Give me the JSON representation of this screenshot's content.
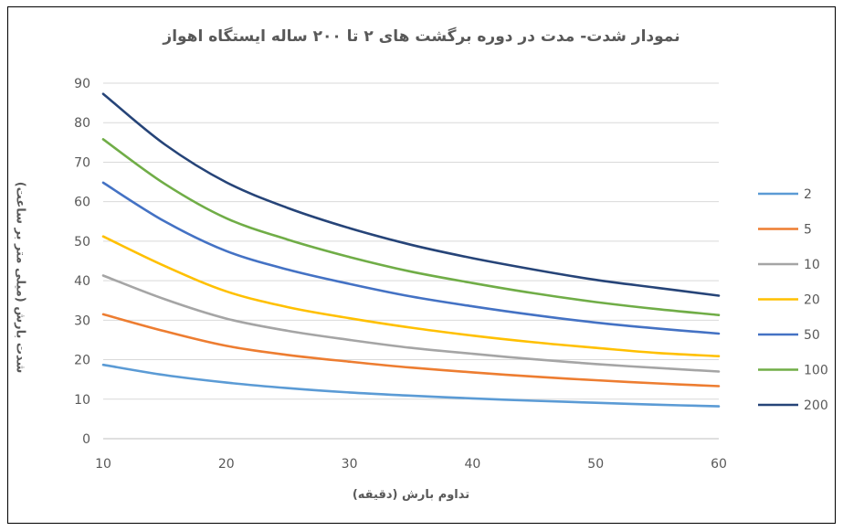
{
  "chart_data": {
    "type": "line",
    "title": "نمودار شدت- مدت در دوره برگشت های ۲ تا ۲۰۰ ساله ایستگاه اهواز",
    "xlabel": "تداوم بارش (دقیقه)",
    "ylabel": "شدت بارش (میلی متر بر ساعت)",
    "xlim": [
      10,
      60
    ],
    "ylim": [
      0,
      90
    ],
    "x_ticks": [
      "10",
      "20",
      "30",
      "40",
      "50",
      "60"
    ],
    "y_ticks": [
      "0",
      "10",
      "20",
      "30",
      "40",
      "50",
      "60",
      "70",
      "80",
      "90"
    ],
    "grid": "horizontal",
    "legend_position": "right",
    "x": [
      10,
      15,
      20,
      25,
      30,
      35,
      40,
      45,
      50,
      55,
      60
    ],
    "series": [
      {
        "name": "2",
        "color": "#5B9BD5",
        "values": [
          18.7,
          16.1,
          14.2,
          12.8,
          11.7,
          10.9,
          10.2,
          9.6,
          9.1,
          8.6,
          8.2
        ]
      },
      {
        "name": "5",
        "color": "#ED7D31",
        "values": [
          31.5,
          27.2,
          23.5,
          21.2,
          19.5,
          18.0,
          16.8,
          15.7,
          14.8,
          14.0,
          13.3
        ]
      },
      {
        "name": "10",
        "color": "#A5A5A5",
        "values": [
          41.3,
          35.3,
          30.4,
          27.3,
          25.0,
          23.0,
          21.5,
          20.1,
          18.9,
          17.9,
          17.0
        ]
      },
      {
        "name": "20",
        "color": "#FFC000",
        "values": [
          51.2,
          43.7,
          37.3,
          33.3,
          30.5,
          28.1,
          26.1,
          24.4,
          23.0,
          21.7,
          20.9
        ]
      },
      {
        "name": "50",
        "color": "#4472C4",
        "values": [
          64.8,
          55.0,
          47.5,
          42.8,
          39.2,
          36.0,
          33.5,
          31.3,
          29.4,
          27.9,
          26.6
        ]
      },
      {
        "name": "100",
        "color": "#70AD47",
        "values": [
          75.8,
          64.5,
          55.8,
          50.4,
          46.0,
          42.3,
          39.4,
          36.8,
          34.6,
          32.8,
          31.3
        ]
      },
      {
        "name": "200",
        "color": "#264478",
        "values": [
          87.3,
          74.5,
          64.9,
          58.4,
          53.3,
          49.1,
          45.7,
          42.8,
          40.2,
          38.2,
          36.2
        ]
      }
    ]
  }
}
